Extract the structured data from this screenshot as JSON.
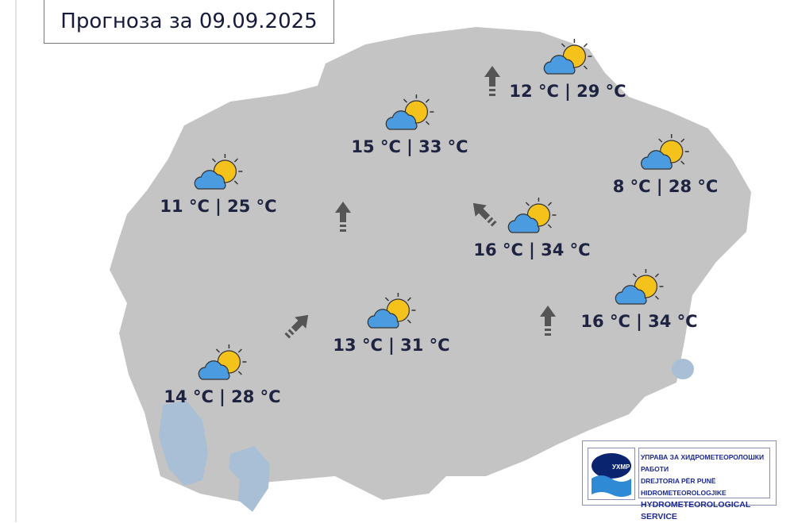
{
  "title": "Прогноза за 09.09.2025",
  "locations": [
    {
      "name": "north-east",
      "temp": "12 °C | 29 °C",
      "icon": "partly-cloudy-icon"
    },
    {
      "name": "center-north",
      "temp": "15 °C | 33 °C",
      "icon": "partly-cloudy-icon"
    },
    {
      "name": "west",
      "temp": "11 °C | 25 °C",
      "icon": "partly-cloudy-icon"
    },
    {
      "name": "east",
      "temp": "8 °C | 28 °C",
      "icon": "partly-cloudy-icon"
    },
    {
      "name": "center-east",
      "temp": "16 °C | 34 °C",
      "icon": "partly-cloudy-icon"
    },
    {
      "name": "south-east",
      "temp": "16 °C | 34 °C",
      "icon": "partly-cloudy-icon"
    },
    {
      "name": "center-south",
      "temp": "13 °C | 31 °C",
      "icon": "partly-cloudy-icon"
    },
    {
      "name": "south-west",
      "temp": "14 °C | 28 °C",
      "icon": "partly-cloudy-icon"
    }
  ],
  "wind_arrows": [
    {
      "direction": "north"
    },
    {
      "direction": "north"
    },
    {
      "direction": "north-west"
    },
    {
      "direction": "north-east"
    },
    {
      "direction": "north"
    }
  ],
  "logo": {
    "emblem": "УХМР",
    "line1": "УПРАВА ЗА ХИДРОМЕТЕОРОЛОШКИ РАБОТИ",
    "line2": "DREJTORIA PËR PUNË HIDROMETEOROLOGJIKE",
    "line3": "HYDROMETEOROLOGICAL SERVICE"
  },
  "colors": {
    "land": "#c4c4c4",
    "lake": "#a9bfd6",
    "text": "#1d2340",
    "sun": "#f5c21b",
    "cloud": "#4a9be0"
  }
}
